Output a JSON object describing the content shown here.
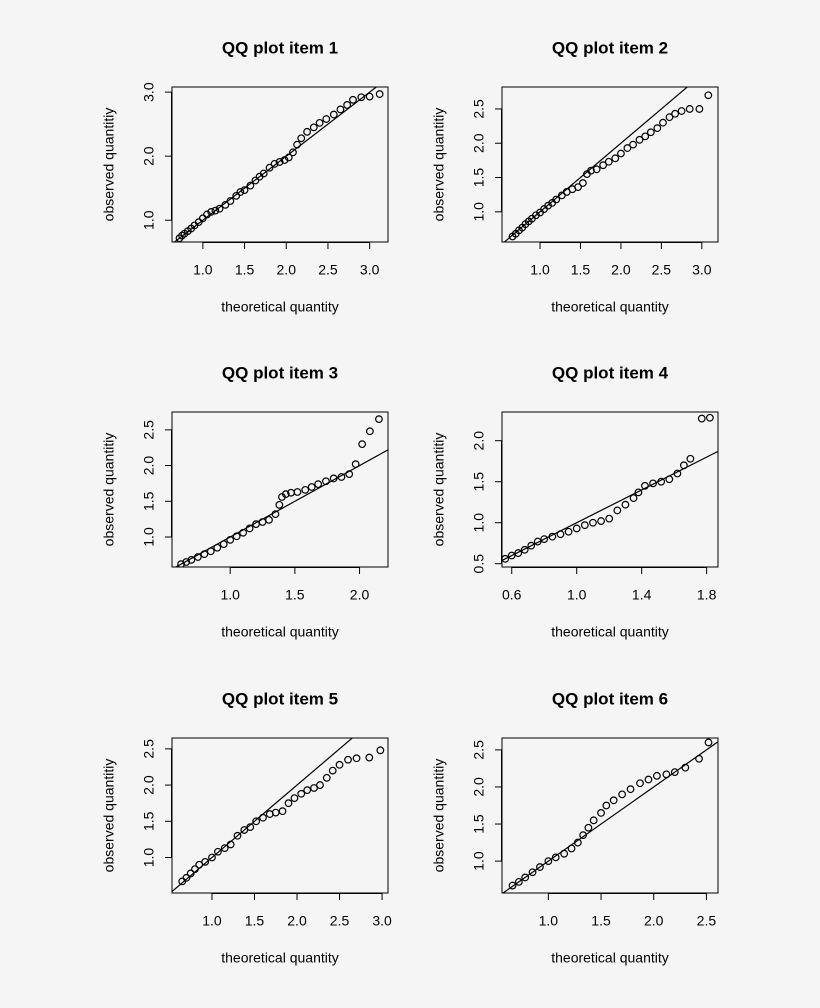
{
  "chart_data": [
    {
      "type": "scatter",
      "title": "QQ plot item 1",
      "xlabel": "theoretical quantity",
      "ylabel": "observed quantitiy",
      "x": [
        0.72,
        0.75,
        0.78,
        0.82,
        0.86,
        0.9,
        0.95,
        1.0,
        1.05,
        1.1,
        1.15,
        1.2,
        1.27,
        1.33,
        1.4,
        1.45,
        1.5,
        1.57,
        1.63,
        1.68,
        1.73,
        1.8,
        1.86,
        1.92,
        1.98,
        2.03,
        2.08,
        2.13,
        2.18,
        2.25,
        2.33,
        2.4,
        2.48,
        2.57,
        2.65,
        2.73,
        2.8,
        2.9,
        3.0,
        3.12
      ],
      "y": [
        0.72,
        0.76,
        0.79,
        0.83,
        0.87,
        0.92,
        0.97,
        1.03,
        1.09,
        1.13,
        1.15,
        1.18,
        1.24,
        1.3,
        1.38,
        1.44,
        1.47,
        1.54,
        1.62,
        1.68,
        1.73,
        1.82,
        1.88,
        1.91,
        1.94,
        1.98,
        2.06,
        2.18,
        2.28,
        2.38,
        2.45,
        2.52,
        2.58,
        2.65,
        2.73,
        2.8,
        2.88,
        2.92,
        2.93,
        2.97
      ],
      "xlim": [
        0.63,
        3.22
      ],
      "ylim": [
        0.66,
        3.08
      ],
      "xticks": [
        {
          "value": 1,
          "label": "1.0"
        },
        1.5,
        {
          "value": 2,
          "label": "2.0"
        },
        2.5,
        {
          "value": 3,
          "label": "3.0"
        }
      ],
      "yticks": [
        {
          "value": 1,
          "label": "1.0"
        },
        {
          "value": 2,
          "label": "2.0"
        },
        {
          "value": 3,
          "label": "3.0"
        }
      ],
      "reference_line": {
        "slope": 1,
        "intercept": 0
      }
    },
    {
      "type": "scatter",
      "title": "QQ plot item 2",
      "xlabel": "theoretical quantity",
      "ylabel": "observed quantitiy",
      "x": [
        0.66,
        0.7,
        0.74,
        0.78,
        0.82,
        0.86,
        0.9,
        0.95,
        1.0,
        1.05,
        1.1,
        1.15,
        1.2,
        1.27,
        1.33,
        1.4,
        1.47,
        1.53,
        1.58,
        1.63,
        1.7,
        1.78,
        1.85,
        1.93,
        2.0,
        2.08,
        2.15,
        2.23,
        2.3,
        2.37,
        2.45,
        2.52,
        2.6,
        2.67,
        2.75,
        2.85,
        2.97,
        3.08
      ],
      "y": [
        0.64,
        0.68,
        0.73,
        0.77,
        0.82,
        0.86,
        0.9,
        0.95,
        0.99,
        1.04,
        1.09,
        1.13,
        1.18,
        1.24,
        1.29,
        1.33,
        1.36,
        1.42,
        1.55,
        1.6,
        1.62,
        1.68,
        1.73,
        1.78,
        1.85,
        1.93,
        1.98,
        2.05,
        2.1,
        2.16,
        2.22,
        2.3,
        2.38,
        2.43,
        2.47,
        2.5,
        2.5,
        2.7
      ],
      "xlim": [
        0.53,
        3.2
      ],
      "ylim": [
        0.56,
        2.82
      ],
      "xticks": [
        {
          "value": 1,
          "label": "1.0"
        },
        1.5,
        {
          "value": 2,
          "label": "2.0"
        },
        2.5,
        {
          "value": 3,
          "label": "3.0"
        }
      ],
      "yticks": [
        {
          "value": 1,
          "label": "1.0"
        },
        1.5,
        {
          "value": 2,
          "label": "2.0"
        },
        2.5
      ],
      "reference_line": {
        "slope": 1,
        "intercept": 0
      }
    },
    {
      "type": "scatter",
      "title": "QQ plot item 3",
      "xlabel": "theoretical quantity",
      "ylabel": "observed quantitiy",
      "x": [
        0.62,
        0.66,
        0.7,
        0.75,
        0.8,
        0.85,
        0.9,
        0.95,
        1.0,
        1.05,
        1.1,
        1.15,
        1.2,
        1.25,
        1.3,
        1.35,
        1.38,
        1.4,
        1.43,
        1.47,
        1.52,
        1.58,
        1.63,
        1.68,
        1.74,
        1.8,
        1.86,
        1.92,
        1.97,
        2.02,
        2.08,
        2.15
      ],
      "y": [
        0.62,
        0.65,
        0.68,
        0.72,
        0.76,
        0.8,
        0.85,
        0.9,
        0.96,
        1.01,
        1.06,
        1.12,
        1.18,
        1.21,
        1.24,
        1.32,
        1.45,
        1.56,
        1.6,
        1.62,
        1.63,
        1.66,
        1.7,
        1.74,
        1.78,
        1.82,
        1.84,
        1.88,
        2.02,
        2.3,
        2.48,
        2.65
      ],
      "xlim": [
        0.55,
        2.22
      ],
      "ylim": [
        0.58,
        2.75
      ],
      "xticks": [
        {
          "value": 1,
          "label": "1.0"
        },
        1.5,
        {
          "value": 2,
          "label": "2.0"
        }
      ],
      "yticks": [
        {
          "value": 1,
          "label": "1.0"
        },
        1.5,
        {
          "value": 2,
          "label": "2.0"
        },
        2.5
      ],
      "reference_line": {
        "slope": 1,
        "intercept": 0
      }
    },
    {
      "type": "scatter",
      "title": "QQ plot item 4",
      "xlabel": "theoretical quantity",
      "ylabel": "observed quantitiy",
      "x": [
        0.56,
        0.6,
        0.64,
        0.68,
        0.72,
        0.76,
        0.8,
        0.85,
        0.9,
        0.95,
        1.0,
        1.05,
        1.1,
        1.15,
        1.2,
        1.25,
        1.3,
        1.35,
        1.38,
        1.42,
        1.47,
        1.52,
        1.57,
        1.62,
        1.66,
        1.7,
        1.77,
        1.82
      ],
      "y": [
        0.56,
        0.6,
        0.63,
        0.67,
        0.72,
        0.77,
        0.8,
        0.83,
        0.86,
        0.89,
        0.93,
        0.97,
        1.0,
        1.02,
        1.05,
        1.15,
        1.22,
        1.3,
        1.37,
        1.45,
        1.48,
        1.5,
        1.53,
        1.6,
        1.7,
        1.78,
        2.27,
        2.28
      ],
      "xlim": [
        0.54,
        1.87
      ],
      "ylim": [
        0.46,
        2.35
      ],
      "xticks": [
        0.6,
        {
          "value": 1,
          "label": "1.0"
        },
        1.4,
        1.8
      ],
      "yticks": [
        0.5,
        {
          "value": 1,
          "label": "1.0"
        },
        1.5,
        {
          "value": 2,
          "label": "2.0"
        }
      ],
      "reference_line": {
        "slope": 1,
        "intercept": 0
      }
    },
    {
      "type": "scatter",
      "title": "QQ plot item 5",
      "xlabel": "theoretical quantity",
      "ylabel": "observed quantitiy",
      "x": [
        0.65,
        0.7,
        0.75,
        0.8,
        0.85,
        0.92,
        1.0,
        1.07,
        1.15,
        1.22,
        1.3,
        1.38,
        1.45,
        1.52,
        1.6,
        1.68,
        1.75,
        1.83,
        1.9,
        1.97,
        2.05,
        2.12,
        2.2,
        2.27,
        2.35,
        2.42,
        2.5,
        2.6,
        2.7,
        2.85,
        2.98
      ],
      "y": [
        0.67,
        0.72,
        0.78,
        0.84,
        0.9,
        0.94,
        1.0,
        1.08,
        1.13,
        1.18,
        1.3,
        1.38,
        1.42,
        1.5,
        1.55,
        1.6,
        1.62,
        1.64,
        1.75,
        1.82,
        1.88,
        1.93,
        1.96,
        2.0,
        2.1,
        2.2,
        2.28,
        2.35,
        2.37,
        2.38,
        2.48
      ],
      "xlim": [
        0.53,
        3.07
      ],
      "ylim": [
        0.51,
        2.65
      ],
      "xticks": [
        {
          "value": 1,
          "label": "1.0"
        },
        1.5,
        {
          "value": 2,
          "label": "2.0"
        },
        2.5,
        {
          "value": 3,
          "label": "3.0"
        }
      ],
      "yticks": [
        {
          "value": 1,
          "label": "1.0"
        },
        1.5,
        {
          "value": 2,
          "label": "2.0"
        },
        2.5
      ],
      "reference_line": {
        "slope": 1,
        "intercept": 0
      }
    },
    {
      "type": "scatter",
      "title": "QQ plot item 6",
      "xlabel": "theoretical quantity",
      "ylabel": "observed quantitiy",
      "x": [
        0.66,
        0.72,
        0.78,
        0.85,
        0.92,
        1.0,
        1.07,
        1.15,
        1.22,
        1.28,
        1.33,
        1.38,
        1.43,
        1.5,
        1.55,
        1.62,
        1.7,
        1.78,
        1.87,
        1.95,
        2.03,
        2.12,
        2.2,
        2.3,
        2.43,
        2.52
      ],
      "y": [
        0.67,
        0.72,
        0.78,
        0.85,
        0.92,
        1.0,
        1.05,
        1.1,
        1.17,
        1.25,
        1.35,
        1.45,
        1.55,
        1.65,
        1.75,
        1.82,
        1.9,
        1.97,
        2.05,
        2.1,
        2.15,
        2.17,
        2.2,
        2.26,
        2.38,
        2.6
      ],
      "xlim": [
        0.56,
        2.61
      ],
      "ylim": [
        0.57,
        2.66
      ],
      "xticks": [
        {
          "value": 1,
          "label": "1.0"
        },
        1.5,
        {
          "value": 2,
          "label": "2.0"
        },
        2.5
      ],
      "yticks": [
        {
          "value": 1,
          "label": "1.0"
        },
        1.5,
        {
          "value": 2,
          "label": "2.0"
        },
        2.5
      ],
      "reference_line": {
        "slope": 1,
        "intercept": 0
      }
    }
  ]
}
